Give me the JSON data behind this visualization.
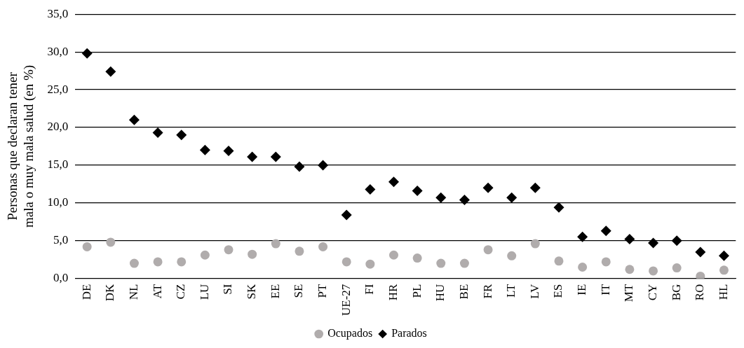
{
  "chart_data": {
    "type": "scatter",
    "ylabel": "Personas que declaran tener mala o muy mala salud (en %)",
    "categories": [
      "DE",
      "DK",
      "NL",
      "AT",
      "CZ",
      "LU",
      "SI",
      "SK",
      "EE",
      "SE",
      "PT",
      "UE-27",
      "FI",
      "HR",
      "PL",
      "HU",
      "BE",
      "FR",
      "LT",
      "LV",
      "ES",
      "IE",
      "IT",
      "MT",
      "CY",
      "BG",
      "RO",
      "HL"
    ],
    "series": [
      {
        "name": "Ocupados",
        "color": "#b0acac",
        "marker": "circle",
        "values": [
          4.2,
          4.8,
          2.0,
          2.2,
          2.2,
          3.1,
          3.8,
          3.2,
          4.6,
          3.6,
          4.2,
          2.2,
          1.9,
          3.1,
          2.7,
          2.0,
          2.0,
          3.8,
          3.0,
          4.6,
          2.3,
          1.5,
          2.2,
          1.2,
          1.0,
          1.4,
          0.3,
          1.1
        ]
      },
      {
        "name": "Parados",
        "color": "#000000",
        "marker": "diamond",
        "values": [
          29.8,
          27.4,
          21.0,
          19.3,
          19.0,
          17.0,
          16.9,
          16.1,
          16.1,
          14.8,
          15.0,
          8.4,
          11.8,
          12.8,
          11.6,
          10.7,
          10.4,
          12.0,
          10.7,
          12.0,
          9.4,
          5.5,
          6.3,
          5.2,
          4.7,
          5.0,
          3.5,
          3.0
        ]
      }
    ],
    "ylim": [
      0,
      35
    ],
    "yticks": [
      {
        "value": 0,
        "label": "0,0"
      },
      {
        "value": 5,
        "label": "5,0"
      },
      {
        "value": 10,
        "label": "10,0"
      },
      {
        "value": 15,
        "label": "15,0"
      },
      {
        "value": 20,
        "label": "20,0"
      },
      {
        "value": 25,
        "label": "25,0"
      },
      {
        "value": 30,
        "label": "30,0"
      },
      {
        "value": 35,
        "label": "35,0"
      }
    ],
    "grid": "y",
    "legend": "bottom"
  }
}
